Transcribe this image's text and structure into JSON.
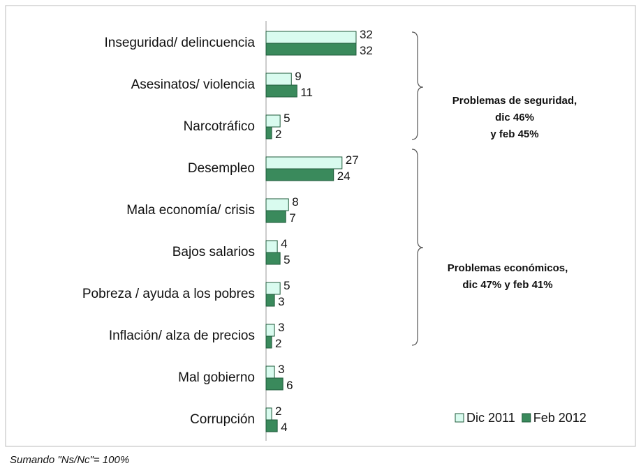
{
  "chart_data": {
    "type": "hbar",
    "categories": [
      "Inseguridad/ delincuencia",
      "Asesinatos/ violencia",
      "Narcotráfico",
      "Desempleo",
      "Mala economía/ crisis",
      "Bajos salarios",
      "Pobreza / ayuda a los pobres",
      "Inflación/ alza de precios",
      "Mal gobierno",
      "Corrupción"
    ],
    "series": [
      {
        "name": "Dic 2011",
        "color": "#d9fbef",
        "values": [
          32,
          9,
          5,
          27,
          8,
          4,
          5,
          3,
          3,
          2
        ]
      },
      {
        "name": "Feb 2012",
        "color": "#3a8a5c",
        "values": [
          32,
          11,
          2,
          24,
          7,
          5,
          3,
          2,
          6,
          4
        ]
      }
    ],
    "legend": "bottom-right",
    "annotations": [
      {
        "lines": [
          "Problemas de seguridad,",
          "dic 46%",
          "y feb 45%"
        ]
      },
      {
        "lines": [
          "Problemas económicos,",
          "dic 47% y feb 41%"
        ]
      }
    ],
    "footnote": "Sumando  \"Ns/Nc\"= 100%"
  }
}
